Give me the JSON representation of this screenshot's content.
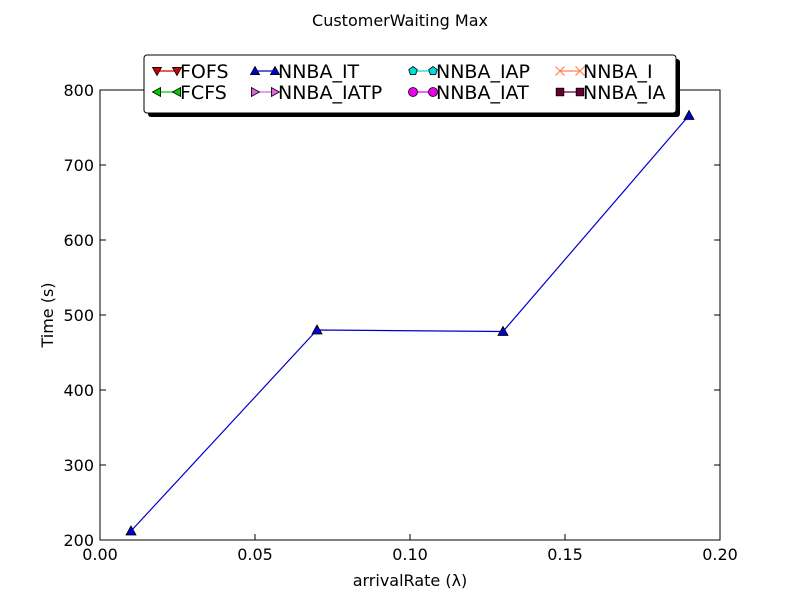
{
  "chart_data": {
    "type": "line",
    "title": "CustomerWaiting Max",
    "xlabel": "arrivalRate (λ)",
    "ylabel": "Time (s)",
    "xlim": [
      0.0,
      0.2
    ],
    "ylim": [
      200,
      800
    ],
    "x_ticks": [
      0.0,
      0.05,
      0.1,
      0.15,
      0.2
    ],
    "x_tick_labels": [
      "0.00",
      "0.05",
      "0.10",
      "0.15",
      "0.20"
    ],
    "y_ticks": [
      200,
      300,
      400,
      500,
      600,
      700,
      800
    ],
    "y_tick_labels": [
      "200",
      "300",
      "400",
      "500",
      "600",
      "700",
      "800"
    ],
    "grid": false,
    "legend_position": "top-center",
    "series": [
      {
        "name": "FOFS",
        "color": "#cc0000",
        "marker": "triangle-down",
        "x": [],
        "y": []
      },
      {
        "name": "FCFS",
        "color": "#00cc00",
        "marker": "triangle-left",
        "x": [],
        "y": []
      },
      {
        "name": "NNBA_IT",
        "color": "#0000cc",
        "marker": "triangle-up",
        "x": [
          0.01,
          0.07,
          0.13,
          0.19
        ],
        "y": [
          212,
          480,
          478,
          766
        ]
      },
      {
        "name": "NNBA_IATP",
        "color": "#dd66dd",
        "marker": "triangle-right",
        "x": [],
        "y": []
      },
      {
        "name": "NNBA_IAP",
        "color": "#00dddd",
        "marker": "pentagon",
        "x": [],
        "y": []
      },
      {
        "name": "NNBA_IAT",
        "color": "#ee00ee",
        "marker": "circle",
        "x": [],
        "y": []
      },
      {
        "name": "NNBA_I",
        "color": "#ff7f50",
        "marker": "x",
        "x": [],
        "y": []
      },
      {
        "name": "NNBA_IA",
        "color": "#660033",
        "marker": "square",
        "x": [],
        "y": []
      }
    ]
  }
}
